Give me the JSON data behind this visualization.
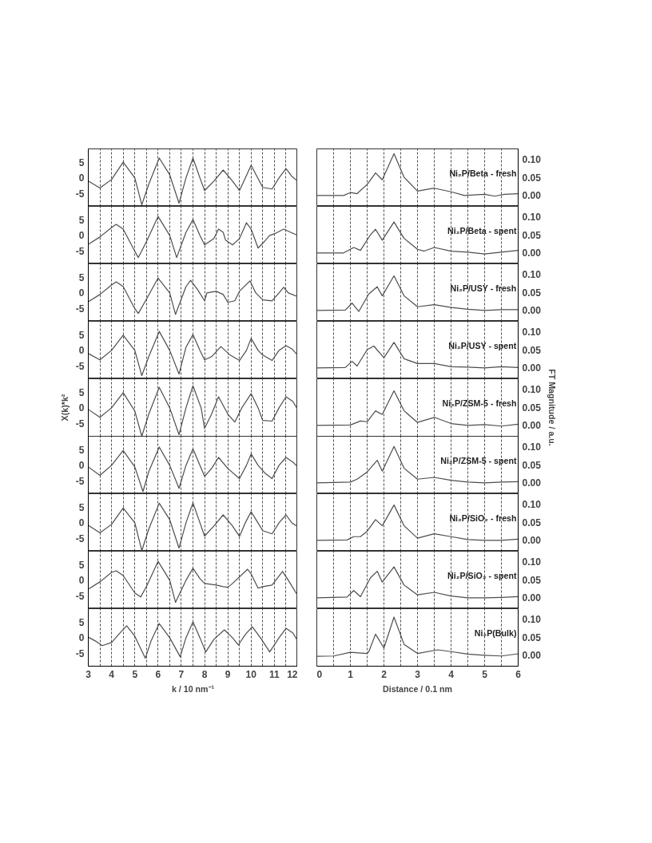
{
  "chart_data": [
    {
      "type": "line",
      "color": "#4d4d4d",
      "x": [
        3,
        3.5,
        4,
        4.5,
        5,
        5.3,
        5.6,
        6.05,
        6.5,
        6.9,
        7.2,
        7.5,
        7.8,
        8,
        8.4,
        8.8,
        9.2,
        9.5,
        9.75,
        10,
        10.25,
        10.5,
        10.9,
        11.2,
        11.5,
        11.75,
        12
      ],
      "values": [
        -1,
        -3.2,
        -0.5,
        5,
        0,
        -8.5,
        -2,
        6.3,
        1,
        -8,
        0,
        6.3,
        0,
        -4,
        -1,
        2.5,
        -1,
        -4,
        0,
        4,
        0.5,
        -3,
        -3.5,
        0,
        3,
        0.5,
        -1
      ],
      "xlim": [
        3,
        12
      ],
      "ylim": [
        -9,
        9.2
      ],
      "xticks": [
        3,
        {
          "value": 3.5,
          "label": null
        },
        4,
        {
          "value": 4.5,
          "label": null
        },
        5,
        {
          "value": 5.5,
          "label": null
        },
        6,
        {
          "value": 6.5,
          "label": null
        },
        7,
        {
          "value": 7.5,
          "label": null
        },
        8,
        {
          "value": 8.5,
          "label": null
        },
        9,
        {
          "value": 9.5,
          "label": null
        },
        10,
        {
          "value": 10.5,
          "label": null
        },
        11,
        {
          "value": 11.5,
          "label": null
        },
        12
      ],
      "yticks": [
        -5,
        0,
        5
      ],
      "grid": "x",
      "tick_labels": "y"
    },
    {
      "type": "line",
      "color": "#4d4d4d",
      "x": [
        0,
        0.8,
        1,
        1.2,
        1.5,
        1.75,
        1.95,
        2.3,
        2.6,
        3,
        3.5,
        4,
        4.4,
        5,
        5.3,
        5.6,
        6
      ],
      "values": [
        0,
        0,
        0.008,
        0.005,
        0.03,
        0.062,
        0.043,
        0.115,
        0.05,
        0.012,
        0.02,
        0.01,
        0,
        0.003,
        -0.002,
        0.003,
        0.005
      ],
      "xlim": [
        0,
        6
      ],
      "ylim": [
        -0.03,
        0.128
      ],
      "xticks": [
        0,
        {
          "value": 0.5,
          "label": null
        },
        1,
        {
          "value": 1.5,
          "label": null
        },
        2,
        {
          "value": 2.5,
          "label": null
        },
        3,
        {
          "value": 3.5,
          "label": null
        },
        4,
        {
          "value": 4.5,
          "label": null
        },
        5,
        {
          "value": 5.5,
          "label": null
        },
        6
      ],
      "yticks": [
        {
          "value": 0,
          "label": "0.00"
        },
        {
          "value": 0.05,
          "label": "0.05"
        },
        {
          "value": 0.1,
          "label": "0.10"
        }
      ],
      "grid": "x",
      "tick_labels": "y",
      "annotations": [
        "Ni₂P/Beta - fresh"
      ]
    },
    {
      "type": "line",
      "color": "#4d4d4d",
      "x": [
        3,
        3.5,
        4,
        4.2,
        4.5,
        5,
        5.15,
        5.5,
        6,
        6.5,
        6.8,
        7.2,
        7.5,
        7.8,
        8,
        8.4,
        8.6,
        8.8,
        8.9,
        9,
        9.2,
        9.5,
        9.8,
        10,
        10.3,
        10.5,
        10.8,
        11,
        11.4,
        11.7,
        12
      ],
      "values": [
        -2.8,
        -0.5,
        2.5,
        3.5,
        2,
        -5,
        -7,
        -2,
        6,
        0,
        -7,
        1,
        5,
        0,
        -3,
        -1,
        2,
        1,
        -1.5,
        -2,
        -3,
        -1,
        4,
        2,
        -4,
        -2.5,
        0,
        0.5,
        2,
        1,
        0
      ],
      "xlim": [
        3,
        12
      ],
      "ylim": [
        -9,
        9.2
      ],
      "xticks": [
        3,
        {
          "value": 3.5,
          "label": null
        },
        4,
        {
          "value": 4.5,
          "label": null
        },
        5,
        {
          "value": 5.5,
          "label": null
        },
        6,
        {
          "value": 6.5,
          "label": null
        },
        7,
        {
          "value": 7.5,
          "label": null
        },
        8,
        {
          "value": 8.5,
          "label": null
        },
        9,
        {
          "value": 9.5,
          "label": null
        },
        10,
        {
          "value": 10.5,
          "label": null
        },
        11,
        {
          "value": 11.5,
          "label": null
        },
        12
      ],
      "yticks": [
        -5,
        0,
        5
      ],
      "grid": "x",
      "tick_labels": "y"
    },
    {
      "type": "line",
      "color": "#4d4d4d",
      "x": [
        0,
        0.8,
        1.1,
        1.3,
        1.6,
        1.75,
        1.95,
        2.3,
        2.6,
        3,
        3.2,
        3.5,
        4,
        4.5,
        5,
        5.5,
        6
      ],
      "values": [
        0,
        0,
        0.015,
        0.007,
        0.05,
        0.065,
        0.035,
        0.085,
        0.04,
        0.01,
        0.005,
        0.015,
        0.005,
        0.002,
        -0.003,
        0.002,
        0.007
      ],
      "xlim": [
        0,
        6
      ],
      "ylim": [
        -0.03,
        0.128
      ],
      "xticks": [
        0,
        {
          "value": 0.5,
          "label": null
        },
        1,
        {
          "value": 1.5,
          "label": null
        },
        2,
        {
          "value": 2.5,
          "label": null
        },
        3,
        {
          "value": 3.5,
          "label": null
        },
        4,
        {
          "value": 4.5,
          "label": null
        },
        5,
        {
          "value": 5.5,
          "label": null
        },
        6
      ],
      "yticks": [
        {
          "value": 0,
          "label": "0.00"
        },
        {
          "value": 0.05,
          "label": "0.05"
        },
        {
          "value": 0.1,
          "label": "0.10"
        }
      ],
      "grid": "x",
      "tick_labels": "y",
      "annotations": [
        "Ni₂P/Beta - spent"
      ]
    },
    {
      "type": "line",
      "color": "#4d4d4d",
      "x": [
        3,
        3.5,
        4,
        4.2,
        4.5,
        5,
        5.15,
        5.5,
        6,
        6.5,
        6.75,
        7.2,
        7.4,
        7.7,
        8,
        8.1,
        8.5,
        8.8,
        9,
        9.3,
        9.5,
        9.95,
        10.2,
        10.5,
        10.9,
        11.2,
        11.4,
        11.6,
        12
      ],
      "values": [
        -2.8,
        -0.5,
        2.5,
        3.5,
        2,
        -5,
        -6.5,
        -2,
        4.7,
        0,
        -6.8,
        2,
        4,
        1,
        -2.5,
        0,
        0.5,
        -0.5,
        -3,
        -2.5,
        0.5,
        3.8,
        0,
        -2.2,
        -2.5,
        0,
        1.8,
        0,
        -1.2
      ],
      "xlim": [
        3,
        12
      ],
      "ylim": [
        -9,
        9.2
      ],
      "xticks": [
        3,
        {
          "value": 3.5,
          "label": null
        },
        4,
        {
          "value": 4.5,
          "label": null
        },
        5,
        {
          "value": 5.5,
          "label": null
        },
        6,
        {
          "value": 6.5,
          "label": null
        },
        7,
        {
          "value": 7.5,
          "label": null
        },
        8,
        {
          "value": 8.5,
          "label": null
        },
        9,
        {
          "value": 9.5,
          "label": null
        },
        10,
        {
          "value": 10.5,
          "label": null
        },
        11,
        {
          "value": 11.5,
          "label": null
        },
        12
      ],
      "yticks": [
        -5,
        0,
        5
      ],
      "grid": "x",
      "tick_labels": "y"
    },
    {
      "type": "line",
      "color": "#4d4d4d",
      "x": [
        0,
        0.85,
        1.05,
        1.25,
        1.55,
        1.8,
        1.95,
        2.3,
        2.6,
        3,
        3.5,
        4,
        4.5,
        5,
        5.5,
        6
      ],
      "values": [
        0,
        0.001,
        0.02,
        -0.003,
        0.045,
        0.065,
        0.04,
        0.095,
        0.04,
        0.01,
        0.016,
        0.008,
        0.003,
        0,
        0.002,
        0.002
      ],
      "xlim": [
        0,
        6
      ],
      "ylim": [
        -0.03,
        0.128
      ],
      "xticks": [
        0,
        {
          "value": 0.5,
          "label": null
        },
        1,
        {
          "value": 1.5,
          "label": null
        },
        2,
        {
          "value": 2.5,
          "label": null
        },
        3,
        {
          "value": 3.5,
          "label": null
        },
        4,
        {
          "value": 4.5,
          "label": null
        },
        5,
        {
          "value": 5.5,
          "label": null
        },
        6
      ],
      "yticks": [
        {
          "value": 0,
          "label": "0.00"
        },
        {
          "value": 0.05,
          "label": "0.05"
        },
        {
          "value": 0.1,
          "label": "0.10"
        }
      ],
      "grid": "x",
      "tick_labels": "y",
      "annotations": [
        "Ni₂P/USY - fresh"
      ]
    },
    {
      "type": "line",
      "color": "#4d4d4d",
      "x": [
        3,
        3.5,
        4,
        4.5,
        5,
        5.3,
        5.6,
        6.05,
        6.5,
        6.9,
        7.2,
        7.5,
        7.8,
        8,
        8.3,
        8.7,
        9.1,
        9.5,
        9.8,
        10,
        10.3,
        10.5,
        10.9,
        11.2,
        11.5,
        11.75,
        12
      ],
      "values": [
        -1,
        -3,
        0,
        4.8,
        0,
        -8,
        -2,
        6,
        0,
        -7.5,
        1,
        5,
        0,
        -3,
        -2,
        1.2,
        -1.5,
        -3.2,
        0,
        3.8,
        0,
        -1.5,
        -3.2,
        0,
        1.5,
        0.5,
        -1.5
      ],
      "xlim": [
        3,
        12
      ],
      "ylim": [
        -9,
        9.2
      ],
      "xticks": [
        3,
        {
          "value": 3.5,
          "label": null
        },
        4,
        {
          "value": 4.5,
          "label": null
        },
        5,
        {
          "value": 5.5,
          "label": null
        },
        6,
        {
          "value": 6.5,
          "label": null
        },
        7,
        {
          "value": 7.5,
          "label": null
        },
        8,
        {
          "value": 8.5,
          "label": null
        },
        9,
        {
          "value": 9.5,
          "label": null
        },
        10,
        {
          "value": 10.5,
          "label": null
        },
        11,
        {
          "value": 11.5,
          "label": null
        },
        12
      ],
      "yticks": [
        -5,
        0,
        5
      ],
      "grid": "x",
      "tick_labels": "y"
    },
    {
      "type": "line",
      "color": "#4d4d4d",
      "x": [
        0,
        0.85,
        1.05,
        1.2,
        1.5,
        1.7,
        2,
        2.3,
        2.6,
        3,
        3.5,
        4,
        4.5,
        5,
        5.5,
        6
      ],
      "values": [
        0,
        0.001,
        0.018,
        0.005,
        0.05,
        0.06,
        0.028,
        0.07,
        0.025,
        0.012,
        0.012,
        0.003,
        0.002,
        0,
        0.003,
        0.001
      ],
      "xlim": [
        0,
        6
      ],
      "ylim": [
        -0.03,
        0.128
      ],
      "xticks": [
        0,
        {
          "value": 0.5,
          "label": null
        },
        1,
        {
          "value": 1.5,
          "label": null
        },
        2,
        {
          "value": 2.5,
          "label": null
        },
        3,
        {
          "value": 3.5,
          "label": null
        },
        4,
        {
          "value": 4.5,
          "label": null
        },
        5,
        {
          "value": 5.5,
          "label": null
        },
        6
      ],
      "yticks": [
        {
          "value": 0,
          "label": "0.00"
        },
        {
          "value": 0.05,
          "label": "0.05"
        },
        {
          "value": 0.1,
          "label": "0.10"
        }
      ],
      "grid": "x",
      "tick_labels": "y",
      "annotations": [
        "Ni₂P/USY - spent"
      ]
    },
    {
      "type": "line",
      "color": "#4d4d4d",
      "x": [
        3,
        3.5,
        4,
        4.5,
        5,
        5.3,
        5.6,
        6.05,
        6.5,
        6.9,
        7.2,
        7.5,
        7.85,
        8,
        8.3,
        8.6,
        9,
        9.3,
        9.6,
        10,
        10.3,
        10.5,
        10.9,
        11.2,
        11.5,
        11.8,
        12
      ],
      "values": [
        -0.5,
        -3,
        0,
        4.8,
        -1,
        -9,
        -2,
        6.5,
        0,
        -8.5,
        0,
        7,
        0,
        -6.5,
        -2,
        3.5,
        -2,
        -4.5,
        0,
        4.5,
        0,
        -4,
        -4.2,
        0,
        3.5,
        2,
        -0.5
      ],
      "xlim": [
        3,
        12
      ],
      "ylim": [
        -9,
        9.2
      ],
      "xticks": [
        3,
        {
          "value": 3.5,
          "label": null
        },
        4,
        {
          "value": 4.5,
          "label": null
        },
        5,
        {
          "value": 5.5,
          "label": null
        },
        6,
        {
          "value": 6.5,
          "label": null
        },
        7,
        {
          "value": 7.5,
          "label": null
        },
        8,
        {
          "value": 8.5,
          "label": null
        },
        9,
        {
          "value": 9.5,
          "label": null
        },
        10,
        {
          "value": 10.5,
          "label": null
        },
        11,
        {
          "value": 11.5,
          "label": null
        },
        12
      ],
      "yticks": [
        -5,
        0,
        5
      ],
      "grid": "x",
      "tick_labels": "y",
      "ylabel": "X(k)*k²"
    },
    {
      "type": "line",
      "color": "#4d4d4d",
      "x": [
        0,
        1,
        1.3,
        1.5,
        1.75,
        1.95,
        2.3,
        2.6,
        3,
        3.5,
        4,
        4.5,
        5,
        5.5,
        6
      ],
      "values": [
        0,
        0.001,
        0.012,
        0.01,
        0.04,
        0.03,
        0.095,
        0.04,
        0.008,
        0.022,
        0.005,
        0,
        0.002,
        -0.002,
        0.003
      ],
      "xlim": [
        0,
        6
      ],
      "ylim": [
        -0.03,
        0.128
      ],
      "xticks": [
        0,
        {
          "value": 0.5,
          "label": null
        },
        1,
        {
          "value": 1.5,
          "label": null
        },
        2,
        {
          "value": 2.5,
          "label": null
        },
        3,
        {
          "value": 3.5,
          "label": null
        },
        4,
        {
          "value": 4.5,
          "label": null
        },
        5,
        {
          "value": 5.5,
          "label": null
        },
        6
      ],
      "yticks": [
        {
          "value": 0,
          "label": "0.00"
        },
        {
          "value": 0.05,
          "label": "0.05"
        },
        {
          "value": 0.1,
          "label": "0.10"
        }
      ],
      "grid": "x",
      "tick_labels": "y",
      "ylabel": "FT Magnitude / a.u.",
      "annotations": [
        "Ni₂P/ZSM-5 - fresh"
      ]
    },
    {
      "type": "line",
      "color": "#4d4d4d",
      "x": [
        3,
        3.5,
        4,
        4.5,
        5,
        5.35,
        5.6,
        6.05,
        6.5,
        6.9,
        7.2,
        7.5,
        7.8,
        8,
        8.3,
        8.6,
        9,
        9.5,
        9.8,
        10,
        10.3,
        10.6,
        10.9,
        11.2,
        11.5,
        11.8,
        12
      ],
      "values": [
        -0.5,
        -3.2,
        0,
        4.7,
        -0.5,
        -8.3,
        -2,
        5.8,
        0,
        -7.3,
        0,
        5.2,
        0,
        -3.5,
        -1,
        2.5,
        -1,
        -4.2,
        0,
        3.6,
        0,
        -2.5,
        -4.2,
        0,
        2.5,
        1,
        -0.5
      ],
      "xlim": [
        3,
        12
      ],
      "ylim": [
        -9,
        9.2
      ],
      "xticks": [
        3,
        {
          "value": 3.5,
          "label": null
        },
        4,
        {
          "value": 4.5,
          "label": null
        },
        5,
        {
          "value": 5.5,
          "label": null
        },
        6,
        {
          "value": 6.5,
          "label": null
        },
        7,
        {
          "value": 7.5,
          "label": null
        },
        8,
        {
          "value": 8.5,
          "label": null
        },
        9,
        {
          "value": 9.5,
          "label": null
        },
        10,
        {
          "value": 10.5,
          "label": null
        },
        11,
        {
          "value": 11.5,
          "label": null
        },
        12
      ],
      "yticks": [
        -5,
        0,
        5
      ],
      "grid": "x",
      "tick_labels": "y"
    },
    {
      "type": "line",
      "color": "#4d4d4d",
      "x": [
        0,
        1,
        1.2,
        1.5,
        1.8,
        1.95,
        2.3,
        2.6,
        3,
        3.5,
        4,
        4.5,
        5,
        5.5,
        6
      ],
      "values": [
        0,
        0.002,
        0.01,
        0.03,
        0.062,
        0.032,
        0.1,
        0.04,
        0.01,
        0.015,
        0.007,
        0.002,
        0,
        0.002,
        0.003
      ],
      "xlim": [
        0,
        6
      ],
      "ylim": [
        -0.03,
        0.128
      ],
      "xticks": [
        0,
        {
          "value": 0.5,
          "label": null
        },
        1,
        {
          "value": 1.5,
          "label": null
        },
        2,
        {
          "value": 2.5,
          "label": null
        },
        3,
        {
          "value": 3.5,
          "label": null
        },
        4,
        {
          "value": 4.5,
          "label": null
        },
        5,
        {
          "value": 5.5,
          "label": null
        },
        6
      ],
      "yticks": [
        {
          "value": 0,
          "label": "0.00"
        },
        {
          "value": 0.05,
          "label": "0.05"
        },
        {
          "value": 0.1,
          "label": "0.10"
        }
      ],
      "grid": "x",
      "tick_labels": "y",
      "annotations": [
        "Ni₂P/ZSM-5 - spent"
      ]
    },
    {
      "type": "line",
      "color": "#4d4d4d",
      "x": [
        3,
        3.5,
        4,
        4.5,
        5,
        5.3,
        5.6,
        6.05,
        6.5,
        6.9,
        7.2,
        7.5,
        7.8,
        8,
        8.4,
        8.8,
        9.2,
        9.5,
        9.75,
        10,
        10.25,
        10.5,
        10.9,
        11.2,
        11.5,
        11.75,
        12
      ],
      "values": [
        -0.8,
        -3.2,
        -0.5,
        4.7,
        0,
        -8.8,
        -2,
        6.2,
        1,
        -8,
        0,
        6.3,
        0,
        -4.2,
        -1,
        2.5,
        -1,
        -4.3,
        0,
        3.5,
        0.5,
        -2.5,
        -3.5,
        0,
        2.5,
        0,
        -1.2
      ],
      "xlim": [
        3,
        12
      ],
      "ylim": [
        -9,
        9.2
      ],
      "xticks": [
        3,
        {
          "value": 3.5,
          "label": null
        },
        4,
        {
          "value": 4.5,
          "label": null
        },
        5,
        {
          "value": 5.5,
          "label": null
        },
        6,
        {
          "value": 6.5,
          "label": null
        },
        7,
        {
          "value": 7.5,
          "label": null
        },
        8,
        {
          "value": 8.5,
          "label": null
        },
        9,
        {
          "value": 9.5,
          "label": null
        },
        10,
        {
          "value": 10.5,
          "label": null
        },
        11,
        {
          "value": 11.5,
          "label": null
        },
        12
      ],
      "yticks": [
        -5,
        0,
        5
      ],
      "grid": "x",
      "tick_labels": "y"
    },
    {
      "type": "line",
      "color": "#4d4d4d",
      "x": [
        0,
        0.9,
        1.1,
        1.3,
        1.5,
        1.75,
        1.95,
        2.3,
        2.6,
        3,
        3.5,
        4,
        4.5,
        5,
        5.5,
        6
      ],
      "values": [
        0,
        0.001,
        0.01,
        0.01,
        0.025,
        0.057,
        0.04,
        0.097,
        0.04,
        0.006,
        0.018,
        0.01,
        0.002,
        0,
        0,
        0.003
      ],
      "xlim": [
        0,
        6
      ],
      "ylim": [
        -0.03,
        0.128
      ],
      "xticks": [
        0,
        {
          "value": 0.5,
          "label": null
        },
        1,
        {
          "value": 1.5,
          "label": null
        },
        2,
        {
          "value": 2.5,
          "label": null
        },
        3,
        {
          "value": 3.5,
          "label": null
        },
        4,
        {
          "value": 4.5,
          "label": null
        },
        5,
        {
          "value": 5.5,
          "label": null
        },
        6
      ],
      "yticks": [
        {
          "value": 0,
          "label": "0.00"
        },
        {
          "value": 0.05,
          "label": "0.05"
        },
        {
          "value": 0.1,
          "label": "0.10"
        }
      ],
      "grid": "x",
      "tick_labels": "y",
      "annotations": [
        "Ni₂P/SiO₂ - fresh"
      ]
    },
    {
      "type": "line",
      "color": "#4d4d4d",
      "x": [
        3,
        3.5,
        4,
        4.2,
        4.5,
        5,
        5.25,
        5.5,
        6,
        6.5,
        6.75,
        7.2,
        7.5,
        7.8,
        8,
        8.5,
        8.8,
        9,
        9.2,
        9.85,
        10,
        10.3,
        10.5,
        10.9,
        11.35,
        11.6,
        12
      ],
      "values": [
        -2.8,
        -0.5,
        2.5,
        3,
        1.5,
        -4,
        -5.3,
        -2,
        6,
        0,
        -7,
        0,
        3.8,
        0.5,
        -1,
        -1.5,
        -2,
        -2.2,
        -1,
        3.5,
        2,
        -2.5,
        -2,
        -1.5,
        2.8,
        0,
        -4.8
      ],
      "xlim": [
        3,
        12
      ],
      "ylim": [
        -9,
        9.2
      ],
      "xticks": [
        3,
        {
          "value": 3.5,
          "label": null
        },
        4,
        {
          "value": 4.5,
          "label": null
        },
        5,
        {
          "value": 5.5,
          "label": null
        },
        6,
        {
          "value": 6.5,
          "label": null
        },
        7,
        {
          "value": 7.5,
          "label": null
        },
        8,
        {
          "value": 8.5,
          "label": null
        },
        9,
        {
          "value": 9.5,
          "label": null
        },
        10,
        {
          "value": 10.5,
          "label": null
        },
        11,
        {
          "value": 11.5,
          "label": null
        },
        12
      ],
      "yticks": [
        -5,
        0,
        5
      ],
      "grid": "x",
      "tick_labels": "y"
    },
    {
      "type": "line",
      "color": "#4d4d4d",
      "x": [
        0,
        0.9,
        1.1,
        1.3,
        1.6,
        1.8,
        1.95,
        2.3,
        2.6,
        3,
        3.5,
        4,
        4.5,
        5,
        5.5,
        6
      ],
      "values": [
        0,
        0.002,
        0.02,
        0.003,
        0.055,
        0.073,
        0.043,
        0.085,
        0.035,
        0.008,
        0.015,
        0.005,
        0,
        0,
        0.001,
        0.003
      ],
      "xlim": [
        0,
        6
      ],
      "ylim": [
        -0.03,
        0.128
      ],
      "xticks": [
        0,
        {
          "value": 0.5,
          "label": null
        },
        1,
        {
          "value": 1.5,
          "label": null
        },
        2,
        {
          "value": 2.5,
          "label": null
        },
        3,
        {
          "value": 3.5,
          "label": null
        },
        4,
        {
          "value": 4.5,
          "label": null
        },
        5,
        {
          "value": 5.5,
          "label": null
        },
        6
      ],
      "yticks": [
        {
          "value": 0,
          "label": "0.00"
        },
        {
          "value": 0.05,
          "label": "0.05"
        },
        {
          "value": 0.1,
          "label": "0.10"
        }
      ],
      "grid": "x",
      "tick_labels": "y",
      "annotations": [
        "Ni₂P/SiO₂ - spent"
      ]
    },
    {
      "type": "line",
      "color": "#4d4d4d",
      "x": [
        3,
        3.3,
        3.6,
        4,
        4.3,
        4.65,
        5,
        5.45,
        5.7,
        6.05,
        6.5,
        6.95,
        7.2,
        7.5,
        7.8,
        8.05,
        8.4,
        8.85,
        9.2,
        9.45,
        9.75,
        10.05,
        10.4,
        10.8,
        11.2,
        11.5,
        11.8,
        12
      ],
      "values": [
        0.2,
        -1,
        -2.5,
        -1.5,
        1,
        3.8,
        0.5,
        -6.5,
        -1,
        4.5,
        0,
        -6,
        0,
        5,
        0,
        -4.5,
        -0.5,
        2.5,
        0,
        -2.3,
        1,
        3.5,
        0,
        -4.5,
        0,
        3,
        1.5,
        -1
      ],
      "xlim": [
        3,
        12
      ],
      "ylim": [
        -9,
        9.2
      ],
      "xticks": [
        3,
        {
          "value": 3.5,
          "label": null
        },
        4,
        {
          "value": 4.5,
          "label": null
        },
        5,
        {
          "value": 5.5,
          "label": null
        },
        6,
        {
          "value": 6.5,
          "label": null
        },
        7,
        {
          "value": 7.5,
          "label": null
        },
        8,
        {
          "value": 8.5,
          "label": null
        },
        9,
        {
          "value": 9.5,
          "label": null
        },
        10,
        {
          "value": 10.5,
          "label": null
        },
        11,
        {
          "value": 11.5,
          "label": null
        },
        12
      ],
      "yticks": [
        -5,
        0,
        5
      ],
      "grid": "x",
      "xlabel": "k / 10 nm⁻¹"
    },
    {
      "type": "line",
      "color": "#4d4d4d",
      "x": [
        0,
        0.5,
        1,
        1.5,
        1.55,
        1.75,
        2,
        2.3,
        2.6,
        3,
        3.6,
        4,
        4.5,
        5,
        5.5,
        6
      ],
      "values": [
        -0.003,
        -0.002,
        0.008,
        0.005,
        0.01,
        0.058,
        0.02,
        0.105,
        0.03,
        0.005,
        0.015,
        0.01,
        0.003,
        0,
        -0.002,
        0.004
      ],
      "xlim": [
        0,
        6
      ],
      "ylim": [
        -0.03,
        0.128
      ],
      "xticks": [
        0,
        {
          "value": 0.5,
          "label": null
        },
        1,
        {
          "value": 1.5,
          "label": null
        },
        2,
        {
          "value": 2.5,
          "label": null
        },
        3,
        {
          "value": 3.5,
          "label": null
        },
        4,
        {
          "value": 4.5,
          "label": null
        },
        5,
        {
          "value": 5.5,
          "label": null
        },
        6
      ],
      "yticks": [
        {
          "value": 0,
          "label": "0.00"
        },
        {
          "value": 0.05,
          "label": "0.05"
        },
        {
          "value": 0.1,
          "label": "0.10"
        }
      ],
      "grid": "x",
      "xlabel": "Distance / 0.1 nm",
      "annotations": [
        "Ni₂P(Bulk)"
      ]
    }
  ]
}
